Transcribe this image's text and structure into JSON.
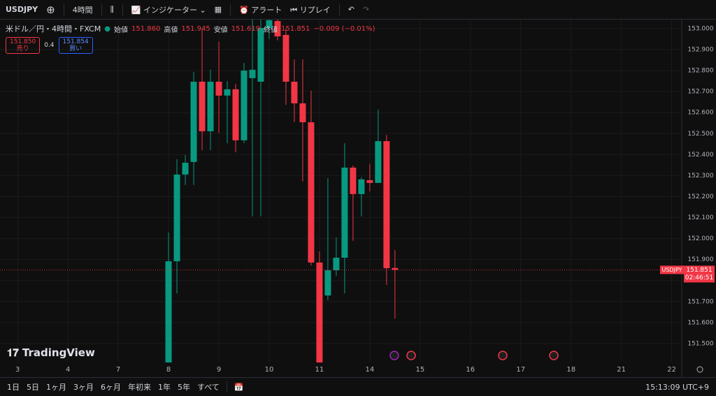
{
  "toolbar": {
    "symbol": "USDJPY",
    "interval": "4時間",
    "indicators": "インジケーター",
    "alert": "アラート",
    "replay": "リプレイ"
  },
  "legend": {
    "title": "米ドル／円・4時間・FXCM",
    "open_label": "始値",
    "open": "151.860",
    "high_label": "高値",
    "high": "151.945",
    "low_label": "安値",
    "low": "151.619",
    "close_label": "終値",
    "close": "151.851",
    "change": "−0.009 (−0.01%)"
  },
  "trade": {
    "sell_price": "151.850",
    "sell": "売り",
    "spread": "0.4",
    "buy_price": "151.854",
    "buy": "買い"
  },
  "logo": "TradingView",
  "chart_data": {
    "type": "candlestick",
    "x": [
      0,
      1,
      2,
      3,
      4,
      5,
      6,
      7,
      8,
      9,
      10,
      11,
      12,
      13,
      14,
      15,
      16,
      17,
      18,
      19,
      20,
      21,
      22,
      23,
      24,
      25,
      26,
      27
    ],
    "open": [
      151.4,
      151.892,
      152.305,
      152.365,
      152.747,
      152.511,
      152.747,
      152.681,
      152.711,
      152.468,
      152.764,
      152.747,
      153.003,
      153.036,
      152.97,
      152.747,
      152.644,
      152.554,
      151.886,
      151.729,
      151.849,
      151.909,
      152.338,
      152.212,
      152.278,
      152.265,
      152.464,
      151.86
    ],
    "high": [
      152.029,
      152.378,
      152.398,
      152.794,
      152.997,
      152.804,
      152.937,
      152.75,
      152.737,
      152.837,
      153.08,
      153.08,
      153.08,
      153.06,
      153.0,
      152.853,
      152.853,
      152.704,
      151.939,
      152.288,
      152.005,
      152.454,
      152.348,
      152.292,
      152.355,
      152.614,
      152.494,
      151.945
    ],
    "low": [
      151.35,
      151.739,
      152.255,
      152.255,
      152.421,
      152.421,
      152.504,
      152.454,
      152.411,
      152.454,
      152.105,
      152.105,
      152.95,
      152.944,
      152.637,
      152.554,
      152.272,
      151.872,
      151.35,
      151.706,
      151.823,
      151.739,
      151.989,
      152.105,
      152.225,
      152.265,
      151.779,
      151.619
    ],
    "close": [
      151.892,
      152.305,
      152.361,
      152.747,
      152.511,
      152.747,
      152.681,
      152.711,
      152.468,
      152.8,
      152.804,
      153.003,
      153.04,
      152.963,
      152.747,
      152.644,
      152.554,
      151.886,
      151.4,
      151.849,
      151.909,
      152.338,
      152.212,
      152.282,
      152.265,
      152.464,
      151.859,
      151.851
    ],
    "up_color": "#089981",
    "down_color": "#f23645",
    "xlim": [
      -20.1,
      61.2
    ],
    "ylim": [
      151.41,
      153.043
    ],
    "xticks": [
      {
        "value": -18,
        "label": "3"
      },
      {
        "value": -12,
        "label": "4"
      },
      {
        "value": -6,
        "label": "7"
      },
      {
        "value": 0,
        "label": "8"
      },
      {
        "value": 6,
        "label": "9"
      },
      {
        "value": 12,
        "label": "10"
      },
      {
        "value": 18,
        "label": "11"
      },
      {
        "value": 24,
        "label": "14"
      },
      {
        "value": 30,
        "label": "15"
      },
      {
        "value": 36,
        "label": "16"
      },
      {
        "value": 42,
        "label": "17"
      },
      {
        "value": 48,
        "label": "18"
      },
      {
        "value": 54,
        "label": "21"
      },
      {
        "value": 60,
        "label": "22"
      }
    ],
    "yticks": [
      {
        "value": 151.5,
        "label": "151.500"
      },
      {
        "value": 151.6,
        "label": "151.600"
      },
      {
        "value": 151.7,
        "label": "151.700"
      },
      {
        "value": 151.8,
        "label": "151.800"
      },
      {
        "value": 151.9,
        "label": "151.900"
      },
      {
        "value": 152.0,
        "label": "152.000"
      },
      {
        "value": 152.1,
        "label": "152.100"
      },
      {
        "value": 152.2,
        "label": "152.200"
      },
      {
        "value": 152.3,
        "label": "152.300"
      },
      {
        "value": 152.4,
        "label": "152.400"
      },
      {
        "value": 152.5,
        "label": "152.500"
      },
      {
        "value": 152.6,
        "label": "152.600"
      },
      {
        "value": 152.7,
        "label": "152.700"
      },
      {
        "value": 152.8,
        "label": "152.800"
      },
      {
        "value": 152.9,
        "label": "152.900"
      },
      {
        "value": 153.0,
        "label": "153.000"
      }
    ],
    "grid": true,
    "last_price": 151.851,
    "symbol_label": "USDJPY",
    "countdown": "02:46:51"
  },
  "bottom_bar": {
    "ranges": [
      "1日",
      "5日",
      "1ヶ月",
      "3ヶ月",
      "6ヶ月",
      "年初来",
      "1年",
      "5年",
      "すべて"
    ],
    "time": "15:13:09 UTC+9"
  }
}
